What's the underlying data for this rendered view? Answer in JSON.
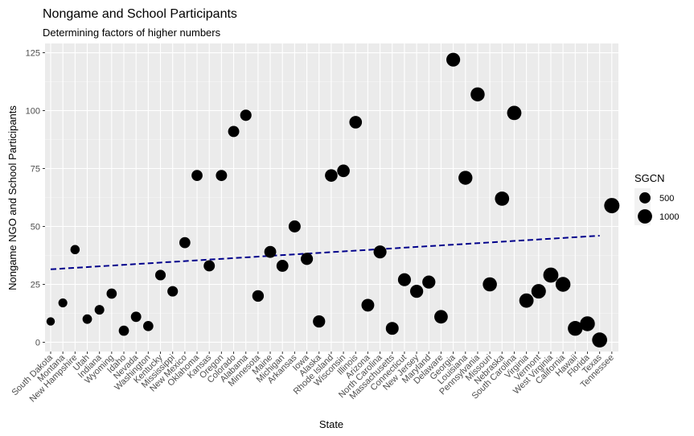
{
  "chart_data": {
    "type": "scatter",
    "title": "Nongame and School Participants",
    "subtitle": "Determining factors of higher numbers",
    "xlabel": "State",
    "ylabel": "Nongame NGO and School Participants",
    "ylim": [
      -4,
      129
    ],
    "yticks": [
      0,
      25,
      50,
      75,
      100,
      125
    ],
    "grid": true,
    "legend_position": "right",
    "legend": {
      "title": "SGCN",
      "entries": [
        {
          "label": "500",
          "value": 500
        },
        {
          "label": "1000",
          "value": 1000
        }
      ]
    },
    "categories": [
      "South Dakota",
      "Montana",
      "New Hampshire",
      "Utah",
      "Indiana",
      "Wyoming",
      "Idaho",
      "Nevada",
      "Washington",
      "Kentucky",
      "Mississippi",
      "New Mexico",
      "Oklahoma",
      "Kansas",
      "Oregon",
      "Colorado",
      "Alabama",
      "Minnesota",
      "Maine",
      "Michigan",
      "Arkansas",
      "Iowa",
      "Alaska",
      "Rhode Island",
      "Wisconsin",
      "Illinois",
      "Arizona",
      "North Carolina",
      "Massachusetts",
      "Connecticut",
      "New Jersey",
      "Maryland",
      "Delaware",
      "Georgia",
      "Louisiana",
      "Pennsylvania",
      "Missouri",
      "Nebraska",
      "South Carolina",
      "Virginia",
      "Vermont",
      "West Virginia",
      "California",
      "Hawaii",
      "Florida",
      "Texas",
      "Tennessee"
    ],
    "series": [
      {
        "values": [
          9,
          17,
          40,
          10,
          14,
          21,
          5,
          11,
          7,
          29,
          22,
          43,
          72,
          33,
          72,
          91,
          98,
          20,
          39,
          33,
          50,
          36,
          9,
          72,
          74,
          95,
          16,
          39,
          6,
          27,
          22,
          26,
          11,
          122,
          71,
          107,
          25,
          62,
          99,
          18,
          22,
          29,
          25,
          6,
          8,
          1,
          59
        ],
        "sizes": [
          200,
          250,
          280,
          300,
          320,
          380,
          380,
          400,
          380,
          420,
          420,
          480,
          480,
          500,
          500,
          500,
          520,
          550,
          600,
          600,
          620,
          640,
          650,
          700,
          700,
          700,
          730,
          760,
          740,
          760,
          780,
          780,
          850,
          900,
          930,
          950,
          960,
          980,
          1000,
          1000,
          1030,
          1150,
          1100,
          1080,
          1100,
          1130,
          1180
        ]
      }
    ],
    "trend_line": {
      "start": 31.5,
      "end": 46,
      "color": "#00008b",
      "style": "dashed"
    },
    "colors": {
      "panel": "#ebebeb",
      "grid_major": "#ffffff",
      "point": "#000000",
      "trend": "#00008b"
    }
  }
}
